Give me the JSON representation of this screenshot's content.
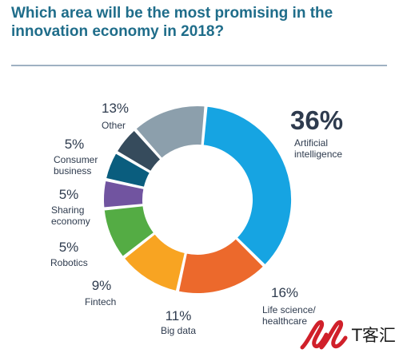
{
  "header": {
    "title_line1": "Which area will be the most promising in the",
    "title_line2": "innovation economy in 2018?"
  },
  "chart_data": {
    "type": "pie",
    "donut": true,
    "title": "Which area will be the most promising in the innovation economy in 2018?",
    "slices": [
      {
        "label": "Artificial intelligence",
        "value": 36,
        "value_label": "36%",
        "label_lines": [
          "Artificial",
          "intelligence"
        ],
        "color": "#16a4e2"
      },
      {
        "label": "Life science/ healthcare",
        "value": 16,
        "value_label": "16%",
        "label_lines": [
          "Life science/",
          "healthcare"
        ],
        "color": "#ec692c"
      },
      {
        "label": "Big data",
        "value": 11,
        "value_label": "11%",
        "label_lines": [
          "Big data"
        ],
        "color": "#f8a422"
      },
      {
        "label": "Fintech",
        "value": 9,
        "value_label": "9%",
        "label_lines": [
          "Fintech"
        ],
        "color": "#54ac44"
      },
      {
        "label": "Robotics",
        "value": 5,
        "value_label": "5%",
        "label_lines": [
          "Robotics"
        ],
        "color": "#7154a0"
      },
      {
        "label": "Sharing economy",
        "value": 5,
        "value_label": "5%",
        "label_lines": [
          "Sharing",
          "economy"
        ],
        "color": "#0a5d7e"
      },
      {
        "label": "Consumer business",
        "value": 5,
        "value_label": "5%",
        "label_lines": [
          "Consumer",
          "business"
        ],
        "color": "#364b5c"
      },
      {
        "label": "Other",
        "value": 13,
        "value_label": "13%",
        "label_lines": [
          "Other"
        ],
        "color": "#8c9fac"
      }
    ]
  },
  "watermark": {
    "logo_text": "T客汇"
  }
}
